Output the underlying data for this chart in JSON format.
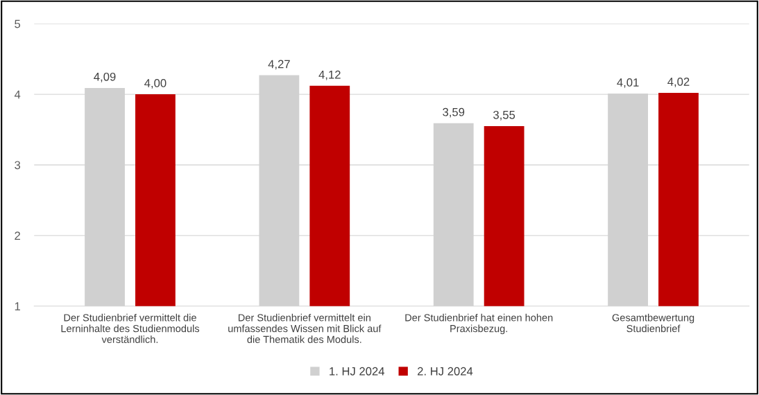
{
  "chart_data": {
    "type": "bar",
    "categories": [
      "Der Studienbrief vermittelt die\nLerninhalte des Studienmoduls\nverständlich.",
      "Der Studienbrief vermittelt ein\numfassendes Wissen mit Blick auf\ndie Thematik des Moduls.",
      "Der Studienbrief hat einen hohen\nPraxisbezug.",
      "Gesamtbewertung\nStudienbrief"
    ],
    "series": [
      {
        "name": "1. HJ 2024",
        "color": "#d0d0d0",
        "values": [
          4.09,
          4.27,
          3.59,
          4.01
        ],
        "value_labels": [
          "4,09",
          "4,27",
          "3,59",
          "4,01"
        ]
      },
      {
        "name": "2. HJ 2024",
        "color": "#c00000",
        "values": [
          4.0,
          4.12,
          3.55,
          4.02
        ],
        "value_labels": [
          "4,00",
          "4,12",
          "3,55",
          "4,02"
        ]
      }
    ],
    "ylim": [
      1,
      5
    ],
    "yticks": [
      1,
      2,
      3,
      4,
      5
    ],
    "grid": "y",
    "legend": "bottom"
  }
}
